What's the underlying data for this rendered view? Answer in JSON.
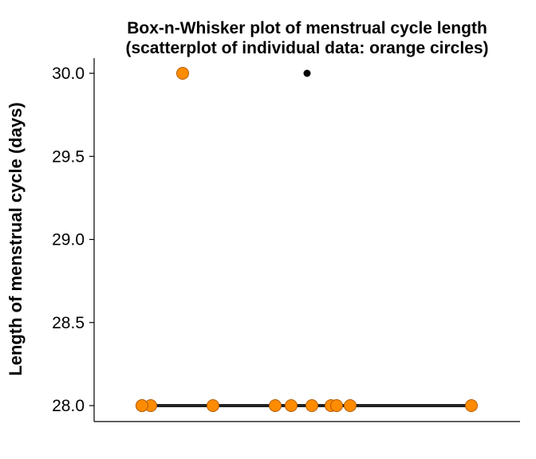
{
  "chart_data": {
    "type": "scatter",
    "title": "Box-n-Whisker plot of menstrual cycle length",
    "subtitle": "(scatterplot of individual data: orange circles)",
    "xlabel": "",
    "ylabel": "Length of menstrual cycle (days)",
    "ylim": [
      27.9,
      30.1
    ],
    "yticks": [
      "28.0",
      "28.5",
      "29.0",
      "29.5",
      "30.0"
    ],
    "grid": false,
    "legend": "none",
    "colors": {
      "points_fill": "#ff8c00",
      "points_stroke": "#b35a00",
      "box_line": "#222222",
      "outlier": "#000000",
      "axis": "#000000"
    },
    "box": {
      "min": 28.0,
      "q1": 28.0,
      "median": 28.0,
      "q3": 28.0,
      "max": 28.0,
      "outliers": [
        30.0
      ]
    },
    "series": [
      {
        "values": [
          28.0,
          28.0,
          28.0,
          28.0,
          28.0,
          28.0,
          28.0,
          28.0,
          28.0,
          28.0,
          28.0,
          30.0
        ]
      }
    ]
  }
}
